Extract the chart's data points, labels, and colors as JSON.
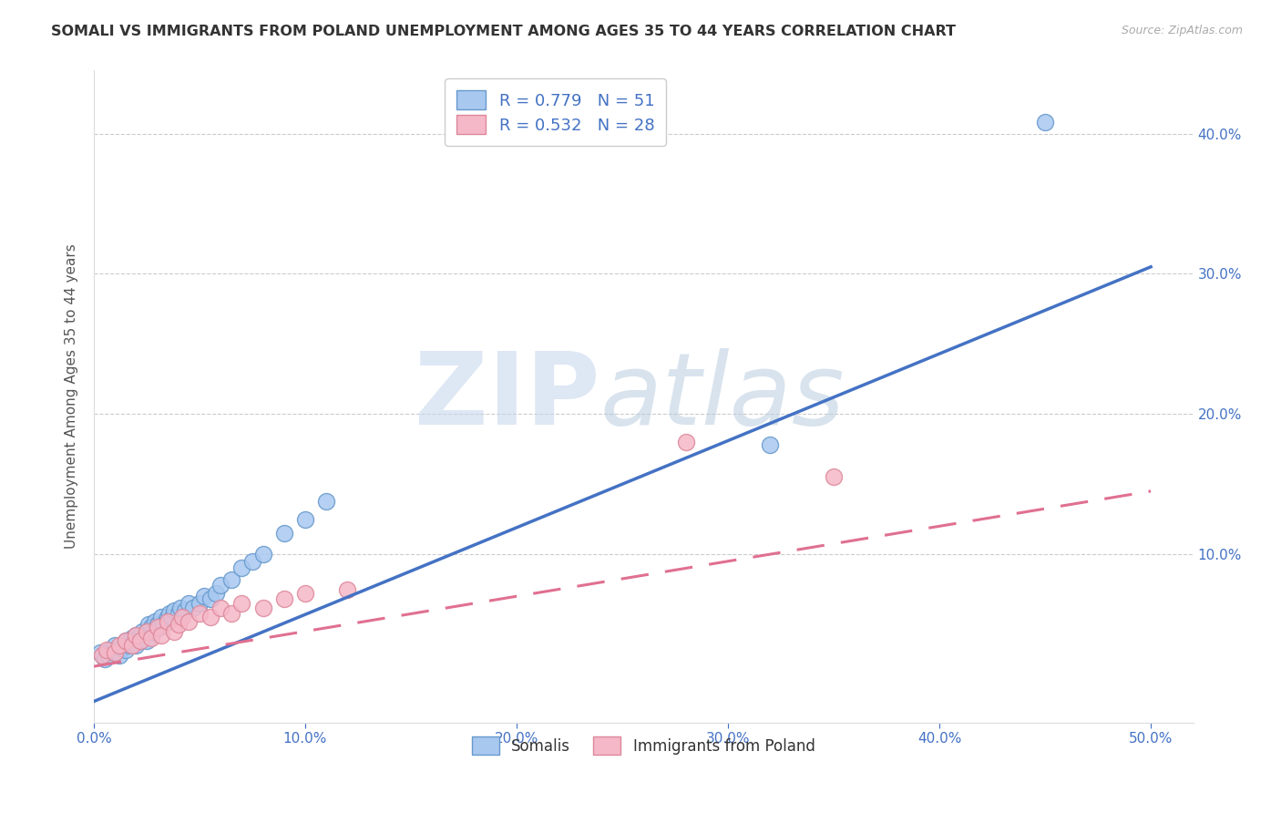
{
  "title": "SOMALI VS IMMIGRANTS FROM POLAND UNEMPLOYMENT AMONG AGES 35 TO 44 YEARS CORRELATION CHART",
  "source": "Source: ZipAtlas.com",
  "ylabel": "Unemployment Among Ages 35 to 44 years",
  "xlim": [
    0.0,
    0.52
  ],
  "ylim": [
    -0.02,
    0.445
  ],
  "xticks": [
    0.0,
    0.1,
    0.2,
    0.3,
    0.4,
    0.5
  ],
  "yticks": [
    0.1,
    0.2,
    0.3,
    0.4
  ],
  "somali_color": "#A8C8F0",
  "somali_edge_color": "#6699CC",
  "poland_color": "#F5B8C8",
  "poland_edge_color": "#DD8899",
  "somali_line_color": "#4472C4",
  "poland_line_color": "#E07090",
  "R_somali": 0.779,
  "N_somali": 51,
  "R_poland": 0.532,
  "N_poland": 28,
  "somali_x": [
    0.003,
    0.005,
    0.007,
    0.008,
    0.01,
    0.01,
    0.012,
    0.013,
    0.015,
    0.015,
    0.017,
    0.018,
    0.019,
    0.02,
    0.02,
    0.021,
    0.022,
    0.023,
    0.024,
    0.025,
    0.026,
    0.027,
    0.028,
    0.029,
    0.03,
    0.031,
    0.032,
    0.033,
    0.035,
    0.036,
    0.037,
    0.038,
    0.04,
    0.041,
    0.043,
    0.045,
    0.047,
    0.05,
    0.052,
    0.055,
    0.058,
    0.06,
    0.065,
    0.07,
    0.075,
    0.08,
    0.09,
    0.1,
    0.11,
    0.32,
    0.45
  ],
  "somali_y": [
    0.03,
    0.025,
    0.028,
    0.032,
    0.03,
    0.035,
    0.028,
    0.033,
    0.032,
    0.038,
    0.035,
    0.04,
    0.038,
    0.035,
    0.042,
    0.04,
    0.038,
    0.045,
    0.042,
    0.038,
    0.05,
    0.048,
    0.045,
    0.052,
    0.05,
    0.048,
    0.055,
    0.05,
    0.055,
    0.058,
    0.055,
    0.06,
    0.058,
    0.062,
    0.06,
    0.065,
    0.062,
    0.065,
    0.07,
    0.068,
    0.072,
    0.078,
    0.082,
    0.09,
    0.095,
    0.1,
    0.115,
    0.125,
    0.138,
    0.178,
    0.408
  ],
  "poland_x": [
    0.004,
    0.006,
    0.01,
    0.012,
    0.015,
    0.018,
    0.02,
    0.022,
    0.025,
    0.027,
    0.03,
    0.032,
    0.035,
    0.038,
    0.04,
    0.042,
    0.045,
    0.05,
    0.055,
    0.06,
    0.065,
    0.07,
    0.08,
    0.09,
    0.1,
    0.12,
    0.28,
    0.35
  ],
  "poland_y": [
    0.028,
    0.032,
    0.03,
    0.035,
    0.038,
    0.035,
    0.042,
    0.038,
    0.045,
    0.04,
    0.048,
    0.042,
    0.052,
    0.045,
    0.05,
    0.055,
    0.052,
    0.058,
    0.055,
    0.062,
    0.058,
    0.065,
    0.062,
    0.068,
    0.072,
    0.075,
    0.18,
    0.155
  ],
  "somali_line": [
    0.0,
    0.5,
    -0.005,
    0.305
  ],
  "poland_line": [
    0.0,
    0.5,
    0.02,
    0.145
  ]
}
